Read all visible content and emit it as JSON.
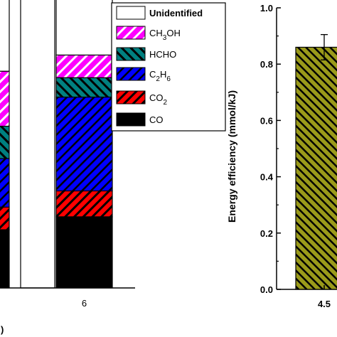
{
  "chart_data": [
    {
      "type": "bar",
      "stacked": true,
      "categories": [
        "",
        "",
        "6"
      ],
      "ylim": [
        0,
        1.0
      ],
      "xlabel": ")",
      "series": [
        {
          "name": "CO",
          "values": [
            0.18,
            0.0,
            0.22
          ],
          "color": "#000000",
          "pattern": "solid"
        },
        {
          "name": "CO2",
          "values": [
            0.07,
            0.0,
            0.08
          ],
          "color": "#ff0000",
          "pattern": "hatch-diagonal"
        },
        {
          "name": "C2H6",
          "values": [
            0.15,
            0.0,
            0.29
          ],
          "color": "#0000ff",
          "pattern": "hatch-diagonal"
        },
        {
          "name": "HCHO",
          "values": [
            0.1,
            0.0,
            0.06
          ],
          "color": "#008080",
          "pattern": "hatch-diagonal"
        },
        {
          "name": "CH3OH",
          "values": [
            0.17,
            0.0,
            0.07
          ],
          "color": "#ff00ff",
          "pattern": "hatch-diagonal"
        },
        {
          "name": "Unidentified",
          "values": [
            0.33,
            1.0,
            0.28
          ],
          "color": "#ffffff",
          "pattern": "none"
        }
      ],
      "legend": {
        "placement": "top-right",
        "entries": [
          {
            "key": "Unidentified",
            "parts": [
              {
                "t": "Unidentified",
                "s": "n"
              }
            ]
          },
          {
            "key": "CH3OH",
            "parts": [
              {
                "t": "CH",
                "s": "n"
              },
              {
                "t": "3",
                "s": "sub"
              },
              {
                "t": "OH",
                "s": "n"
              }
            ]
          },
          {
            "key": "HCHO",
            "parts": [
              {
                "t": "HCHO",
                "s": "n"
              }
            ]
          },
          {
            "key": "C2H6",
            "parts": [
              {
                "t": "C",
                "s": "n"
              },
              {
                "t": "2",
                "s": "sub"
              },
              {
                "t": "H",
                "s": "n"
              },
              {
                "t": "6",
                "s": "sub"
              }
            ]
          },
          {
            "key": "CO2",
            "parts": [
              {
                "t": "CO",
                "s": "n"
              },
              {
                "t": "2",
                "s": "sub"
              }
            ]
          },
          {
            "key": "CO",
            "parts": [
              {
                "t": "CO",
                "s": "n"
              }
            ]
          }
        ]
      }
    },
    {
      "type": "bar",
      "categories": [
        "4.5"
      ],
      "values": [
        0.86
      ],
      "error": [
        0.045
      ],
      "ylabel": "Energy efficiency (mmol/kJ)",
      "ylim": [
        0,
        1.0
      ],
      "yticks": [
        "0.0",
        "0.2",
        "0.4",
        "0.6",
        "0.8",
        "1.0"
      ],
      "color": "#9a9a1a",
      "pattern": "hatch-diagonal"
    }
  ]
}
